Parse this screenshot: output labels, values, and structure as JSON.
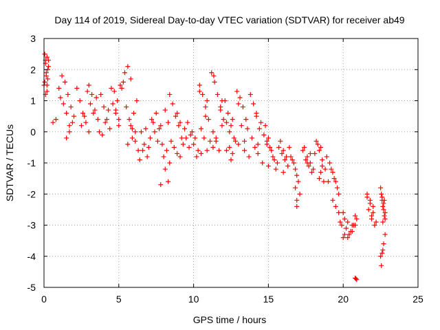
{
  "chart_data": {
    "type": "scatter",
    "title": "Day 114 of 2019, Sidereal Day-to-day VTEC variation (SDTVAR) for receiver ab49",
    "xlabel": "GPS time / hours",
    "ylabel": "SDTVAR / TECUs",
    "xlim": [
      0,
      25
    ],
    "ylim": [
      -5,
      3
    ],
    "xticks": [
      "0",
      "5",
      "10",
      "15",
      "20",
      "25"
    ],
    "yticks": [
      "-5",
      "-4",
      "-3",
      "-2",
      "-1",
      "0",
      "1",
      "2",
      "3"
    ],
    "grid": true,
    "marker": "+",
    "marker_color": "#ff0000",
    "series": [
      {
        "name": "SDTVAR",
        "x": [
          0.0,
          0.05,
          0.1,
          0.15,
          0.2,
          0.25,
          0.3,
          0.1,
          0.2,
          0.05,
          0.15,
          0.25,
          0.3,
          0.2,
          0.1,
          0.6,
          0.8,
          1.0,
          1.2,
          1.4,
          1.6,
          1.8,
          2.0,
          1.3,
          1.5,
          1.7,
          1.9,
          1.1,
          1.5,
          1.7,
          2.2,
          2.4,
          2.6,
          2.8,
          3.0,
          3.2,
          3.4,
          3.6,
          2.5,
          2.9,
          3.1,
          3.3,
          3.0,
          2.7,
          3.5,
          3.8,
          4.0,
          4.2,
          4.4,
          3.9,
          4.1,
          4.3,
          3.7,
          4.5,
          4.7,
          4.9,
          5.1,
          5.3,
          4.6,
          4.8,
          5.0,
          4.8,
          5.4,
          5.6,
          5.8,
          5.2,
          5.0,
          5.5,
          5.7,
          5.9,
          6.1,
          6.3,
          5.6,
          5.8,
          6.0,
          6.2,
          6.1,
          5.9,
          6.5,
          6.7,
          6.9,
          7.1,
          7.3,
          6.6,
          6.8,
          7.0,
          7.2,
          6.4,
          7.4,
          7.5,
          7.7,
          7.9,
          8.1,
          8.3,
          7.6,
          7.8,
          8.0,
          8.2,
          7.8,
          8.4,
          8.3,
          8.1,
          8.4,
          8.6,
          8.8,
          9.0,
          9.2,
          8.5,
          8.7,
          8.9,
          9.1,
          9.3,
          8.9,
          9.1,
          9.4,
          9.6,
          9.8,
          10.0,
          10.2,
          9.7,
          9.9,
          10.1,
          10.3,
          9.5,
          10.4,
          10.6,
          10.8,
          11.0,
          10.5,
          10.7,
          10.9,
          11.1,
          10.5,
          10.8,
          10.9,
          10.4,
          11.2,
          11.4,
          11.6,
          11.8,
          12.0,
          11.3,
          11.5,
          11.7,
          11.9,
          11.35,
          11.3,
          11.5,
          11.8,
          11.9,
          12.1,
          12.3,
          12.5,
          12.7,
          12.2,
          12.4,
          12.6,
          12.8,
          12.4,
          12.6,
          12.2,
          12.5,
          12.9,
          13.1,
          13.3,
          13.5,
          13.0,
          13.2,
          13.4,
          13.6,
          13.0,
          13.4,
          13.7,
          13.8,
          14.0,
          14.2,
          14.4,
          13.9,
          14.1,
          14.3,
          14.5,
          14.2,
          14.3,
          14.6,
          14.7,
          14.9,
          15.1,
          15.3,
          15.5,
          14.8,
          15.0,
          15.2,
          15.4,
          15.6,
          14.9,
          15.0,
          15.7,
          15.9,
          16.1,
          16.3,
          15.8,
          16.0,
          16.2,
          16.0,
          16.4,
          16.5,
          16.7,
          16.9,
          17.1,
          16.6,
          16.8,
          17.0,
          16.9,
          16.8,
          16.9,
          17.3,
          17.5,
          17.7,
          17.9,
          18.1,
          17.4,
          17.6,
          17.8,
          18.0,
          17.6,
          17.8,
          18.2,
          18.4,
          18.6,
          18.8,
          19.0,
          18.3,
          18.5,
          18.7,
          18.9,
          18.4,
          18.6,
          18.5,
          19.1,
          19.3,
          19.5,
          19.7,
          19.2,
          19.4,
          19.6,
          19.3,
          19.5,
          19.7,
          19.8,
          19.9,
          20.1,
          20.3,
          20.5,
          20.7,
          20.9,
          20.0,
          20.2,
          20.4,
          20.6,
          20.8,
          20.0,
          20.3,
          20.6,
          20.1,
          20.4,
          20.8,
          20.8,
          20.9,
          20.85,
          21.6,
          21.8,
          22.0,
          22.2,
          21.7,
          21.9,
          22.1,
          21.8,
          22.0,
          21.6,
          21.9,
          22.5,
          22.6,
          22.7,
          22.8,
          22.55,
          22.65,
          22.75,
          22.6,
          22.7,
          22.8,
          22.65,
          22.75,
          22.5,
          22.55,
          22.6,
          22.7,
          22.65,
          22.8
        ],
        "y": [
          1.5,
          2.5,
          2.2,
          1.8,
          1.3,
          2.0,
          2.3,
          1.2,
          2.4,
          1.6,
          1.9,
          1.7,
          2.1,
          1.5,
          2.3,
          0.3,
          0.4,
          1.4,
          1.8,
          1.6,
          1.2,
          0.8,
          0.5,
          0.9,
          -0.2,
          0.0,
          0.3,
          1.1,
          0.6,
          0.2,
          1.4,
          1.0,
          0.6,
          0.3,
          1.5,
          1.2,
          0.7,
          0.4,
          0.2,
          1.3,
          0.9,
          0.6,
          0.0,
          0.5,
          1.1,
          1.2,
          0.8,
          0.4,
          0.1,
          -0.1,
          0.3,
          0.7,
          0.0,
          1.4,
          1.3,
          1.0,
          1.5,
          1.6,
          0.9,
          0.6,
          0.2,
          0.7,
          1.9,
          2.1,
          1.7,
          1.4,
          0.4,
          0.8,
          0.4,
          0.1,
          -0.3,
          -0.6,
          -0.4,
          0.2,
          0.6,
          1.0,
          0.0,
          -0.2,
          0.0,
          -0.4,
          -0.8,
          -0.2,
          0.3,
          -0.6,
          0.1,
          -0.5,
          0.4,
          -0.9,
          0.0,
          0.6,
          0.1,
          -0.4,
          -1.2,
          -1.6,
          -0.3,
          0.2,
          -0.8,
          -0.6,
          -1.7,
          -1.0,
          0.3,
          0.7,
          1.2,
          0.9,
          0.5,
          0.2,
          -0.2,
          -0.3,
          -0.5,
          -0.7,
          -0.8,
          -0.4,
          0.6,
          0.3,
          0.1,
          0.3,
          -0.1,
          -0.4,
          -0.8,
          -0.5,
          0.0,
          -0.2,
          -0.6,
          -0.2,
          1.5,
          1.2,
          0.8,
          0.4,
          0.1,
          -0.2,
          -0.6,
          -0.3,
          -0.7,
          0.5,
          1.0,
          1.3,
          1.9,
          1.6,
          1.2,
          0.8,
          0.4,
          0.0,
          -0.3,
          -0.6,
          0.2,
          1.8,
          -0.5,
          -0.2,
          0.7,
          1.0,
          1.0,
          0.6,
          0.2,
          -0.2,
          0.3,
          -0.5,
          -0.7,
          -0.3,
          0.0,
          0.4,
          -0.6,
          -0.9,
          1.3,
          1.1,
          0.8,
          0.4,
          0.9,
          0.2,
          -0.3,
          0.1,
          -0.4,
          -0.6,
          -0.8,
          1.2,
          0.9,
          0.5,
          0.1,
          -0.2,
          -0.5,
          -0.7,
          0.3,
          0.6,
          -0.4,
          -1.0,
          -0.1,
          -0.3,
          -0.5,
          -0.8,
          -1.2,
          0.2,
          -0.2,
          -0.6,
          -0.9,
          -1.0,
          -0.4,
          -1.1,
          -0.5,
          -0.7,
          -0.9,
          -1.1,
          -0.3,
          -0.6,
          -0.8,
          -1.3,
          -0.5,
          -0.8,
          -1.0,
          -1.4,
          -2.0,
          -0.9,
          -1.2,
          -1.6,
          -2.2,
          -1.8,
          -2.4,
          -0.6,
          -0.9,
          -1.1,
          -1.3,
          -0.7,
          -0.5,
          -0.8,
          -1.0,
          -1.2,
          -1.0,
          -0.7,
          -0.3,
          -0.6,
          -0.9,
          -1.2,
          -1.6,
          -0.4,
          -1.3,
          -1.6,
          -0.8,
          -1.5,
          -1.1,
          -0.5,
          -1.0,
          -1.3,
          -1.6,
          -2.0,
          -1.2,
          -1.5,
          -1.8,
          -2.2,
          -2.4,
          -2.6,
          -2.9,
          -3.0,
          -3.3,
          -3.4,
          -3.2,
          -3.0,
          -2.8,
          -2.6,
          -3.1,
          -3.3,
          -3.0,
          -2.7,
          -3.4,
          -2.9,
          -3.2,
          -2.8,
          -3.3,
          -3.0,
          -4.7,
          -4.75,
          -4.72,
          -2.0,
          -2.3,
          -2.6,
          -2.9,
          -2.5,
          -2.8,
          -3.0,
          -2.2,
          -2.4,
          -2.1,
          -2.7,
          -1.8,
          -2.2,
          -2.5,
          -2.8,
          -2.0,
          -2.4,
          -2.7,
          -2.1,
          -2.3,
          -2.6,
          -2.9,
          -2.2,
          -4.0,
          -4.3,
          -3.9,
          -3.6,
          -3.8,
          -3.3
        ]
      }
    ]
  }
}
